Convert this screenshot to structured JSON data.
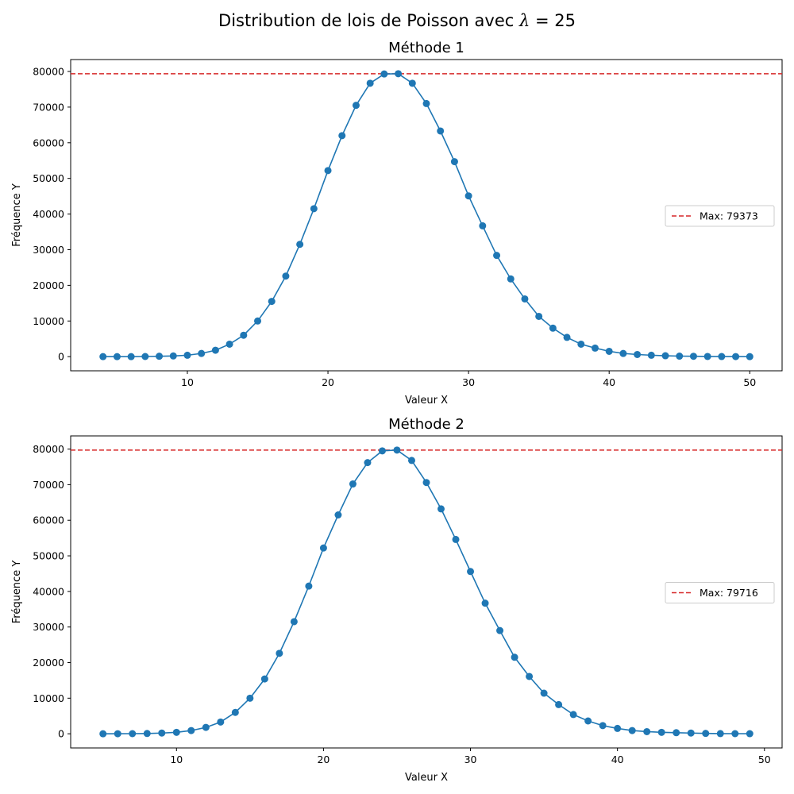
{
  "figure": {
    "title_prefix": "Distribution de lois de Poisson avec ",
    "title_symbol": "λ",
    "title_suffix": " = 25"
  },
  "chart_data": [
    {
      "type": "line",
      "title": "Méthode 1",
      "xlabel": "Valeur X",
      "ylabel": "Fréquence Y",
      "xlim": [
        1.7,
        52.3
      ],
      "ylim": [
        -3969,
        83342
      ],
      "xticks": [
        10,
        20,
        30,
        40,
        50
      ],
      "yticks": [
        0,
        10000,
        20000,
        30000,
        40000,
        50000,
        60000,
        70000,
        80000
      ],
      "line_color": "#1f77b4",
      "marker": "circle",
      "x": [
        4,
        5,
        6,
        7,
        8,
        9,
        10,
        11,
        12,
        13,
        14,
        15,
        16,
        17,
        18,
        19,
        20,
        21,
        22,
        23,
        24,
        25,
        26,
        27,
        28,
        29,
        30,
        31,
        32,
        33,
        34,
        35,
        36,
        37,
        38,
        39,
        40,
        41,
        42,
        43,
        44,
        45,
        46,
        47,
        48,
        49,
        50
      ],
      "y": [
        0,
        0,
        10,
        40,
        120,
        200,
        400,
        900,
        1800,
        3500,
        6000,
        10000,
        15500,
        22600,
        31500,
        41500,
        52200,
        62000,
        70500,
        76700,
        79300,
        79373,
        76700,
        71000,
        63300,
        54700,
        45100,
        36700,
        28400,
        21800,
        16200,
        11300,
        8000,
        5400,
        3500,
        2400,
        1500,
        900,
        600,
        400,
        250,
        150,
        100,
        50,
        30,
        20,
        10
      ],
      "reference_line": {
        "y": 79373,
        "color": "#d62728",
        "style": "dashed",
        "label": "Max: 79373"
      },
      "legend_position": "center-right"
    },
    {
      "type": "line",
      "title": "Méthode 2",
      "xlabel": "Valeur X",
      "ylabel": "Fréquence Y",
      "xlim": [
        2.8,
        51.2
      ],
      "ylim": [
        -3986,
        83702
      ],
      "xticks": [
        10,
        20,
        30,
        40,
        50
      ],
      "yticks": [
        0,
        10000,
        20000,
        30000,
        40000,
        50000,
        60000,
        70000,
        80000
      ],
      "line_color": "#1f77b4",
      "marker": "circle",
      "x": [
        5,
        6,
        7,
        8,
        9,
        10,
        11,
        12,
        13,
        14,
        15,
        16,
        17,
        18,
        19,
        20,
        21,
        22,
        23,
        24,
        25,
        26,
        27,
        28,
        29,
        30,
        31,
        32,
        33,
        34,
        35,
        36,
        37,
        38,
        39,
        40,
        41,
        42,
        43,
        44,
        45,
        46,
        47,
        48,
        49
      ],
      "y": [
        0,
        10,
        30,
        80,
        200,
        400,
        900,
        1800,
        3300,
        6000,
        10000,
        15400,
        22600,
        31500,
        41500,
        52200,
        61500,
        70200,
        76200,
        79500,
        79716,
        76800,
        70600,
        63200,
        54600,
        45600,
        36700,
        29000,
        21500,
        16100,
        11400,
        8200,
        5400,
        3600,
        2300,
        1500,
        900,
        600,
        400,
        300,
        200,
        100,
        50,
        30,
        20
      ],
      "reference_line": {
        "y": 79716,
        "color": "#d62728",
        "style": "dashed",
        "label": "Max: 79716"
      },
      "legend_position": "center-right"
    }
  ]
}
